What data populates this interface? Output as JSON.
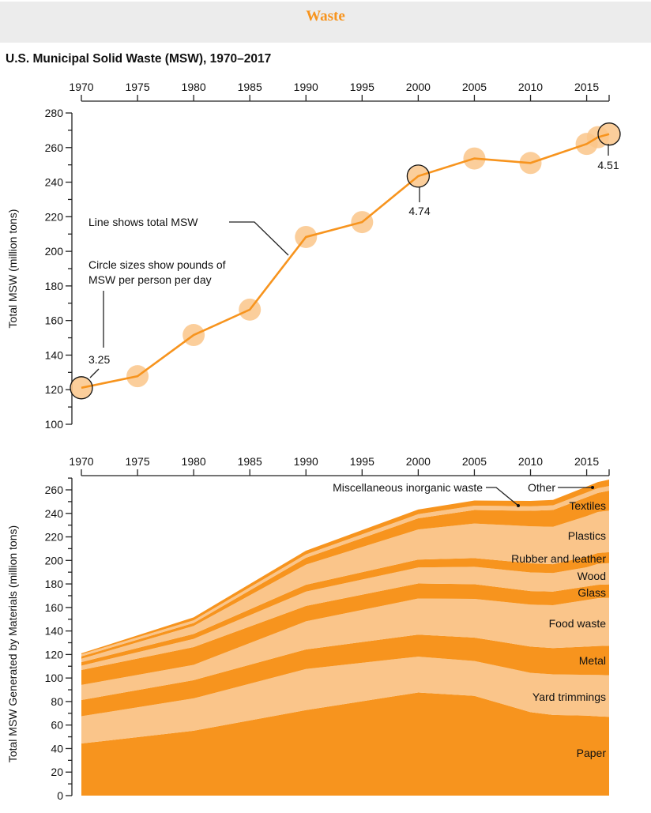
{
  "header": {
    "title": "Waste"
  },
  "chart_data": [
    {
      "type": "line",
      "title": "U.S. Municipal Solid Waste (MSW), 1970–2017",
      "xlabel": "",
      "ylabel": "Total MSW (million tons)",
      "xlim": [
        1970,
        2017
      ],
      "ylim": [
        100,
        280
      ],
      "x_ticks": [
        "1970",
        "1975",
        "1980",
        "1985",
        "1990",
        "1995",
        "2000",
        "2005",
        "2010",
        "2015"
      ],
      "y_ticks": [
        "100",
        "120",
        "140",
        "160",
        "180",
        "200",
        "220",
        "240",
        "260",
        "280"
      ],
      "x": [
        1970,
        1975,
        1980,
        1985,
        1990,
        1995,
        2000,
        2005,
        2010,
        2015,
        2016,
        2017
      ],
      "values": [
        121.1,
        127.8,
        151.6,
        166.3,
        208.3,
        216.9,
        243.5,
        253.7,
        251.1,
        262.1,
        266.0,
        267.8
      ],
      "line_color": "#F7941E",
      "circle_color": "#FAC58A",
      "circle_labels": [
        {
          "year": 1970,
          "text": "3.25"
        },
        {
          "year": 2000,
          "text": "4.74"
        },
        {
          "year": 2017,
          "text": "4.51"
        }
      ],
      "annotations": {
        "line_note": "Line shows total MSW",
        "circle_note_1": "Circle sizes show pounds of",
        "circle_note_2": "MSW per person per day"
      }
    },
    {
      "type": "area",
      "stacked": true,
      "xlabel": "",
      "ylabel": "Total MSW Generated by Materials (million tons)",
      "xlim": [
        1970,
        2017
      ],
      "ylim": [
        0,
        270
      ],
      "x_ticks": [
        "1970",
        "1975",
        "1980",
        "1985",
        "1990",
        "1995",
        "2000",
        "2005",
        "2010",
        "2015"
      ],
      "y_ticks": [
        "0",
        "20",
        "40",
        "60",
        "80",
        "100",
        "120",
        "140",
        "160",
        "180",
        "200",
        "220",
        "240",
        "260"
      ],
      "x": [
        1970,
        1980,
        1990,
        2000,
        2005,
        2010,
        2012,
        2015,
        2016,
        2017
      ],
      "colors": {
        "dark": "#F7941E",
        "light": "#FAC58A"
      },
      "series": [
        {
          "name": "Paper",
          "values": [
            44.3,
            55.2,
            72.7,
            87.7,
            84.8,
            71.0,
            68.6,
            68.0,
            67.4,
            67.0
          ]
        },
        {
          "name": "Yard trimmings",
          "values": [
            23.2,
            27.5,
            35.0,
            30.5,
            29.7,
            33.4,
            34.5,
            34.7,
            35.2,
            35.4
          ]
        },
        {
          "name": "Metal",
          "values": [
            13.8,
            15.5,
            16.6,
            18.7,
            19.9,
            22.3,
            22.4,
            24.0,
            24.6,
            25.1
          ]
        },
        {
          "name": "Food waste",
          "values": [
            12.8,
            13.0,
            23.9,
            30.7,
            32.9,
            35.7,
            36.4,
            39.7,
            40.7,
            40.7
          ]
        },
        {
          "name": "Glass",
          "values": [
            12.7,
            15.1,
            13.1,
            12.8,
            12.5,
            11.5,
            11.6,
            11.5,
            11.4,
            11.4
          ]
        },
        {
          "name": "Wood",
          "values": [
            3.7,
            7.0,
            12.2,
            13.6,
            14.8,
            15.9,
            15.8,
            16.3,
            17.8,
            18.1
          ]
        },
        {
          "name": "Rubber and leather",
          "values": [
            3.0,
            4.2,
            5.8,
            6.7,
            7.4,
            7.8,
            7.5,
            9.0,
            9.2,
            9.3
          ]
        },
        {
          "name": "Plastics",
          "values": [
            2.9,
            6.8,
            17.1,
            25.6,
            29.4,
            31.4,
            31.8,
            34.5,
            34.9,
            35.4
          ]
        },
        {
          "name": "Textiles",
          "values": [
            2.0,
            2.5,
            5.8,
            9.5,
            11.5,
            13.2,
            14.3,
            16.0,
            16.2,
            16.9
          ]
        },
        {
          "name": "Miscellaneous inorganic waste",
          "values": [
            1.8,
            2.3,
            2.9,
            3.5,
            3.7,
            3.8,
            3.9,
            4.0,
            4.0,
            4.0
          ]
        },
        {
          "name": "Other",
          "values": [
            0.8,
            2.5,
            3.2,
            4.0,
            4.3,
            4.6,
            4.6,
            5.1,
            5.2,
            5.4
          ]
        }
      ]
    }
  ]
}
